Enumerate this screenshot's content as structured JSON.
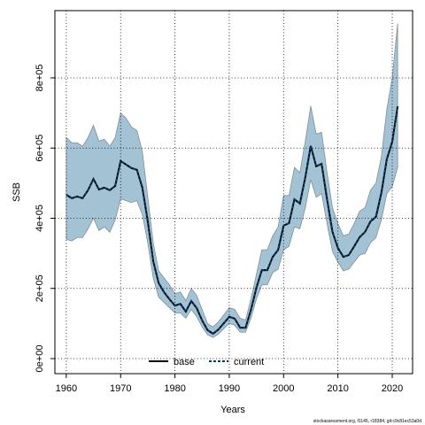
{
  "chart_data": {
    "type": "line",
    "xlabel": "Years",
    "ylabel": "SSB",
    "source": "stockassessment.org, f1145, r18384, git:c9c81ec53a0d",
    "x": [
      1960,
      1961,
      1962,
      1963,
      1964,
      1965,
      1966,
      1967,
      1968,
      1969,
      1970,
      1971,
      1972,
      1973,
      1974,
      1975,
      1976,
      1977,
      1978,
      1979,
      1980,
      1981,
      1982,
      1983,
      1984,
      1985,
      1986,
      1987,
      1988,
      1989,
      1990,
      1991,
      1992,
      1993,
      1994,
      1995,
      1996,
      1997,
      1998,
      1999,
      2000,
      2001,
      2002,
      2003,
      2004,
      2005,
      2006,
      2007,
      2008,
      2009,
      2010,
      2011,
      2012,
      2013,
      2014,
      2015,
      2016,
      2017,
      2018,
      2019,
      2020,
      2021
    ],
    "series": [
      {
        "name": "base",
        "color": "#000000",
        "style": "solid",
        "values": [
          467000,
          457000,
          462000,
          457000,
          480000,
          512000,
          482000,
          487000,
          480000,
          492000,
          563000,
          553000,
          543000,
          538000,
          487000,
          391000,
          278000,
          215000,
          189000,
          169000,
          151000,
          156000,
          134000,
          164000,
          144000,
          109000,
          81000,
          71000,
          83000,
          101000,
          119000,
          114000,
          88000,
          88000,
          139000,
          202000,
          252000,
          252000,
          290000,
          310000,
          379000,
          386000,
          454000,
          442000,
          517000,
          606000,
          548000,
          555000,
          454000,
          361000,
          315000,
          290000,
          295000,
          320000,
          346000,
          361000,
          391000,
          404000,
          472000,
          568000,
          618000,
          719000
        ]
      },
      {
        "name": "current",
        "color": "#0b3a5e",
        "style": "dashed",
        "values": [
          467000,
          457000,
          462000,
          457000,
          480000,
          512000,
          482000,
          487000,
          480000,
          492000,
          563000,
          553000,
          543000,
          538000,
          487000,
          391000,
          278000,
          215000,
          189000,
          169000,
          151000,
          156000,
          134000,
          164000,
          144000,
          109000,
          81000,
          71000,
          83000,
          101000,
          119000,
          114000,
          88000,
          88000,
          139000,
          202000,
          252000,
          252000,
          290000,
          310000,
          379000,
          386000,
          454000,
          442000,
          517000,
          606000,
          548000,
          555000,
          454000,
          361000,
          315000,
          290000,
          295000,
          320000,
          346000,
          361000,
          391000,
          404000,
          472000,
          568000,
          618000,
          719000
        ]
      }
    ],
    "band": {
      "color": "#a3c3d5",
      "upper": [
        630000,
        615000,
        615000,
        605000,
        630000,
        665000,
        620000,
        625000,
        605000,
        630000,
        700000,
        685000,
        660000,
        650000,
        590000,
        460000,
        330000,
        250000,
        230000,
        210000,
        185000,
        190000,
        165000,
        200000,
        180000,
        140000,
        100000,
        90000,
        105000,
        125000,
        145000,
        140000,
        115000,
        110000,
        170000,
        240000,
        310000,
        310000,
        350000,
        375000,
        465000,
        465000,
        545000,
        530000,
        620000,
        720000,
        640000,
        645000,
        530000,
        430000,
        385000,
        350000,
        355000,
        385000,
        420000,
        430000,
        480000,
        500000,
        575000,
        710000,
        800000,
        955000
      ],
      "lower": [
        340000,
        335000,
        345000,
        345000,
        370000,
        400000,
        365000,
        375000,
        360000,
        395000,
        455000,
        450000,
        445000,
        450000,
        410000,
        330000,
        230000,
        175000,
        160000,
        145000,
        130000,
        130000,
        115000,
        140000,
        120000,
        90000,
        68000,
        60000,
        70000,
        85000,
        100000,
        95000,
        75000,
        75000,
        115000,
        170000,
        210000,
        210000,
        245000,
        255000,
        310000,
        320000,
        375000,
        370000,
        430000,
        510000,
        460000,
        470000,
        385000,
        305000,
        275000,
        250000,
        255000,
        275000,
        295000,
        300000,
        330000,
        345000,
        395000,
        470000,
        490000,
        545000
      ]
    },
    "xlim": [
      1957.9,
      2023.75
    ],
    "ylim": [
      -42900,
      991700
    ],
    "xticks": [
      1960,
      1970,
      1980,
      1990,
      2000,
      2010,
      2020
    ],
    "yticks": [
      {
        "value": 0,
        "label": "0e+00"
      },
      {
        "value": 200000,
        "label": "2e+05"
      },
      {
        "value": 400000,
        "label": "4e+05"
      },
      {
        "value": 600000,
        "label": "6e+05"
      },
      {
        "value": 800000,
        "label": "8e+05"
      }
    ],
    "grid": true,
    "legend": "bottom"
  }
}
